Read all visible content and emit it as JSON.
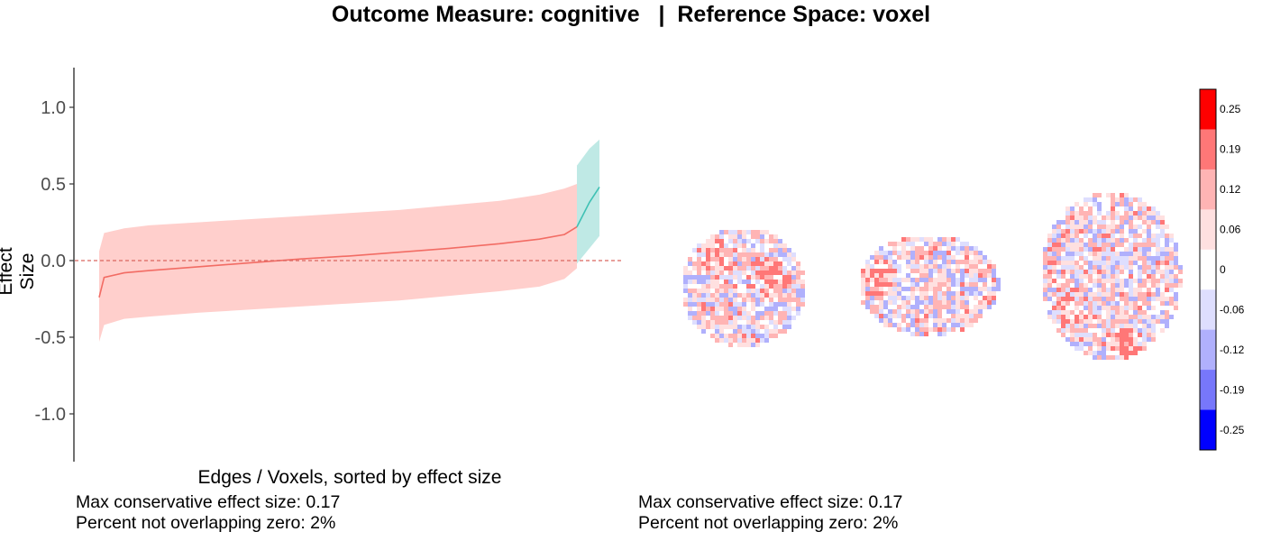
{
  "title": "Outcome Measure: cognitive   |  Reference Space: voxel",
  "colors": {
    "ci_band": "#ffcfcc",
    "line": "#f26c64",
    "ci_band_sig": "#bfe9e5",
    "line_sig": "#3fc1b4",
    "zero_line": "#d9665f"
  },
  "chart_data": [
    {
      "type": "line",
      "xlabel": "Edges / Voxels, sorted by effect size",
      "ylabel": "Effect Size",
      "ylim": [
        -1.3,
        1.3
      ],
      "yticks": [
        -1.0,
        -0.5,
        0.0,
        0.5,
        1.0
      ],
      "ytick_labels": [
        "-1.0",
        "-0.5",
        "0.0",
        "0.5",
        "1.0"
      ],
      "xlim": [
        0,
        1
      ],
      "grid": false,
      "reference_line": {
        "y": 0,
        "style": "dashed"
      },
      "series": [
        {
          "points": [
            {
              "x": 0.0,
              "y": -0.24,
              "lo": -0.53,
              "hi": 0.06
            },
            {
              "x": 0.01,
              "y": -0.11,
              "lo": -0.42,
              "hi": 0.18
            },
            {
              "x": 0.05,
              "y": -0.08,
              "lo": -0.38,
              "hi": 0.21
            },
            {
              "x": 0.1,
              "y": -0.065,
              "lo": -0.365,
              "hi": 0.23
            },
            {
              "x": 0.2,
              "y": -0.04,
              "lo": -0.34,
              "hi": 0.25
            },
            {
              "x": 0.3,
              "y": -0.015,
              "lo": -0.32,
              "hi": 0.27
            },
            {
              "x": 0.4,
              "y": 0.01,
              "lo": -0.3,
              "hi": 0.29
            },
            {
              "x": 0.5,
              "y": 0.03,
              "lo": -0.28,
              "hi": 0.31
            },
            {
              "x": 0.6,
              "y": 0.055,
              "lo": -0.26,
              "hi": 0.33
            },
            {
              "x": 0.7,
              "y": 0.08,
              "lo": -0.23,
              "hi": 0.36
            },
            {
              "x": 0.8,
              "y": 0.11,
              "lo": -0.2,
              "hi": 0.39
            },
            {
              "x": 0.88,
              "y": 0.14,
              "lo": -0.17,
              "hi": 0.43
            },
            {
              "x": 0.93,
              "y": 0.17,
              "lo": -0.12,
              "hi": 0.47
            },
            {
              "x": 0.955,
              "y": 0.22,
              "lo": -0.05,
              "hi": 0.5
            }
          ]
        },
        {
          "points": [
            {
              "x": 0.955,
              "y": 0.22,
              "lo": -0.02,
              "hi": 0.62
            },
            {
              "x": 0.98,
              "y": 0.38,
              "lo": 0.08,
              "hi": 0.73
            },
            {
              "x": 1.0,
              "y": 0.48,
              "lo": 0.16,
              "hi": 0.79
            }
          ]
        }
      ]
    },
    {
      "type": "heatmap",
      "panels": [
        "coronal",
        "sagittal",
        "axial"
      ],
      "colorbar": {
        "tick_labels": [
          "0.25",
          "0.19",
          "0.12",
          "0.06",
          "0",
          "-0.06",
          "-0.12",
          "-0.19",
          "-0.25"
        ],
        "bins": [
          "#ff0000",
          "#ff7777",
          "#ffb4b4",
          "#ffe0e0",
          "#ffffff",
          "#dedefe",
          "#b0b0fc",
          "#7777fb",
          "#0000ff"
        ]
      }
    }
  ],
  "summary_left": {
    "line1": "Max conservative effect size: 0.17",
    "line2": "Percent not overlapping zero: 2%"
  },
  "summary_right": {
    "line1": "Max conservative effect size: 0.17",
    "line2": "Percent not overlapping zero: 2%"
  }
}
